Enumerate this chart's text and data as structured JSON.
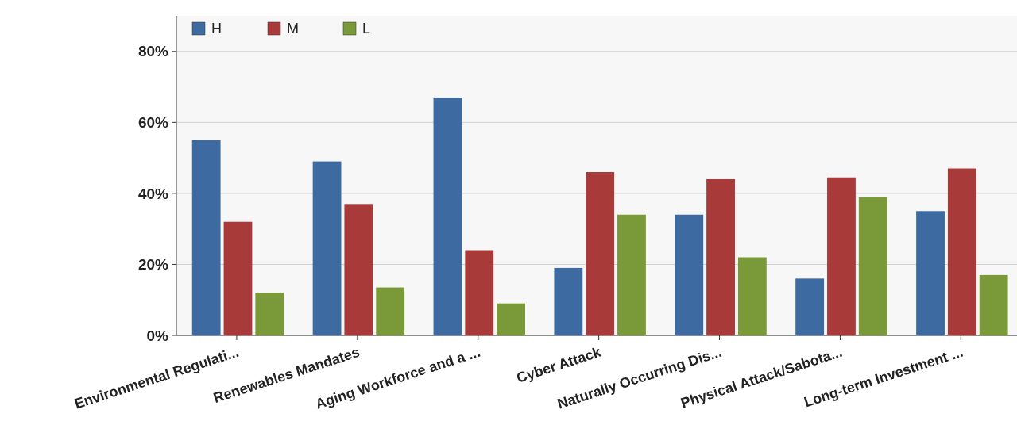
{
  "chart_data": {
    "type": "bar",
    "categories": [
      "Environmental Regulati...",
      "Renewables Mandates",
      "Aging Workforce and a ...",
      "Cyber Attack",
      "Naturally Occurring Dis...",
      "Physical Attack/Sabota...",
      "Long-term Investment ..."
    ],
    "series": [
      {
        "name": "H",
        "color": "#3d6aa0",
        "values": [
          55,
          49,
          67,
          19,
          34,
          16,
          35
        ]
      },
      {
        "name": "M",
        "color": "#a83a3a",
        "values": [
          32,
          37,
          24,
          46,
          44,
          44.5,
          47
        ]
      },
      {
        "name": "L",
        "color": "#7a9a3a",
        "values": [
          12,
          13.5,
          9,
          34,
          22,
          39,
          17
        ]
      }
    ],
    "ylim": [
      0,
      90
    ],
    "yticks": [
      {
        "value": 0,
        "label": "0%"
      },
      {
        "value": 20,
        "label": "20%"
      },
      {
        "value": 40,
        "label": "40%"
      },
      {
        "value": 60,
        "label": "60%"
      },
      {
        "value": 80,
        "label": "80%"
      }
    ],
    "grid": "y",
    "legend": "top left"
  }
}
